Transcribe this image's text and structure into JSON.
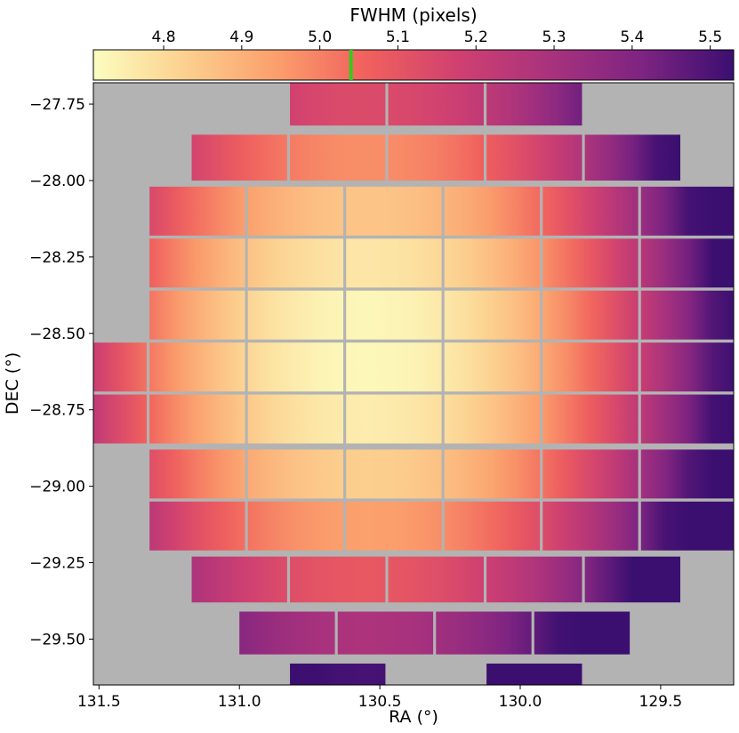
{
  "chart_data": {
    "type": "heatmap",
    "title": "",
    "xlabel": "RA (°)",
    "ylabel": "DEC (°)",
    "xlim": [
      131.52,
      129.24
    ],
    "ylim": [
      -29.65,
      -27.68
    ],
    "x_ticks": [
      131.5,
      131.0,
      130.5,
      130.0,
      129.5
    ],
    "x_tick_labels": [
      "131.5",
      "131.0",
      "130.5",
      "130.0",
      "129.5"
    ],
    "y_ticks": [
      -27.75,
      -28.0,
      -28.25,
      -28.5,
      -28.75,
      -29.0,
      -29.25,
      -29.5
    ],
    "y_tick_labels": [
      "−27.75",
      "−28.00",
      "−28.25",
      "−28.50",
      "−28.75",
      "−29.00",
      "−29.25",
      "−29.50"
    ],
    "background_color": "#b3b3b3",
    "colorbar": {
      "label": "FWHM (pixels)",
      "orientation": "horizontal",
      "position": "top",
      "range": [
        4.71,
        5.53
      ],
      "ticks": [
        4.8,
        4.9,
        5.0,
        5.1,
        5.2,
        5.3,
        5.4,
        5.5
      ],
      "tick_labels": [
        "4.8",
        "4.9",
        "5.0",
        "5.1",
        "5.2",
        "5.3",
        "5.4",
        "5.5"
      ],
      "marker_value": 5.04,
      "marker_color": "#33cc1a",
      "colormap": "magma_r",
      "colormap_stops": [
        "#fcfdbf",
        "#fcd08f",
        "#fb9f6c",
        "#f0605d",
        "#cf4071",
        "#a8327d",
        "#7e2482",
        "#3b0f70"
      ]
    },
    "fwhm_field": {
      "description_of_trend": "minimum at center, increasing radially",
      "center_ra": 130.55,
      "center_dec": -28.55,
      "min_fwhm": 4.72,
      "edge_fwhm": 5.3
    },
    "ccd_rows": [
      {
        "dec": [
          -27.68,
          -27.82
        ],
        "ra": [
          [
            130.82,
            130.48
          ],
          [
            130.47,
            130.13
          ],
          [
            130.12,
            129.78
          ]
        ]
      },
      {
        "dec": [
          -27.85,
          -28.0
        ],
        "ra": [
          [
            131.17,
            130.83
          ],
          [
            130.82,
            130.48
          ],
          [
            130.47,
            130.13
          ],
          [
            130.12,
            129.78
          ],
          [
            129.77,
            129.43
          ]
        ]
      },
      {
        "dec": [
          -28.02,
          -28.18
        ],
        "ra": [
          [
            131.32,
            130.98
          ],
          [
            130.97,
            130.63
          ],
          [
            130.62,
            130.28
          ],
          [
            130.27,
            129.93
          ],
          [
            129.92,
            129.58
          ],
          [
            129.57,
            129.23
          ]
        ]
      },
      {
        "dec": [
          -28.19,
          -28.35
        ],
        "ra": [
          [
            131.32,
            130.98
          ],
          [
            130.97,
            130.63
          ],
          [
            130.62,
            130.28
          ],
          [
            130.27,
            129.93
          ],
          [
            129.92,
            129.58
          ],
          [
            129.57,
            129.23
          ]
        ]
      },
      {
        "dec": [
          -28.36,
          -28.52
        ],
        "ra": [
          [
            131.32,
            130.98
          ],
          [
            130.97,
            130.63
          ],
          [
            130.62,
            130.28
          ],
          [
            130.27,
            129.93
          ],
          [
            129.92,
            129.58
          ],
          [
            129.57,
            129.23
          ]
        ]
      },
      {
        "dec": [
          -28.53,
          -28.69
        ],
        "ra": [
          [
            131.67,
            131.33
          ],
          [
            131.32,
            130.98
          ],
          [
            130.97,
            130.63
          ],
          [
            130.62,
            130.28
          ],
          [
            130.27,
            129.93
          ],
          [
            129.92,
            129.58
          ],
          [
            129.57,
            129.23
          ]
        ]
      },
      {
        "dec": [
          -28.7,
          -28.86
        ],
        "ra": [
          [
            131.67,
            131.33
          ],
          [
            131.32,
            130.98
          ],
          [
            130.97,
            130.63
          ],
          [
            130.62,
            130.28
          ],
          [
            130.27,
            129.93
          ],
          [
            129.92,
            129.58
          ],
          [
            129.57,
            129.23
          ]
        ]
      },
      {
        "dec": [
          -28.88,
          -29.04
        ],
        "ra": [
          [
            131.32,
            130.98
          ],
          [
            130.97,
            130.63
          ],
          [
            130.62,
            130.28
          ],
          [
            130.27,
            129.93
          ],
          [
            129.92,
            129.58
          ],
          [
            129.57,
            129.23
          ]
        ]
      },
      {
        "dec": [
          -29.05,
          -29.21
        ],
        "ra": [
          [
            131.32,
            130.98
          ],
          [
            130.97,
            130.63
          ],
          [
            130.62,
            130.28
          ],
          [
            130.27,
            129.93
          ],
          [
            129.92,
            129.58
          ],
          [
            129.57,
            129.23
          ]
        ]
      },
      {
        "dec": [
          -29.23,
          -29.38
        ],
        "ra": [
          [
            131.17,
            130.83
          ],
          [
            130.82,
            130.48
          ],
          [
            130.47,
            130.13
          ],
          [
            130.12,
            129.78
          ],
          [
            129.77,
            129.43
          ]
        ]
      },
      {
        "dec": [
          -29.41,
          -29.55
        ],
        "ra": [
          [
            131.0,
            130.66
          ],
          [
            130.65,
            130.31
          ],
          [
            130.3,
            129.96
          ],
          [
            129.95,
            129.61
          ]
        ]
      },
      {
        "dec": [
          -29.58,
          -29.72
        ],
        "ra": [
          [
            130.82,
            130.48
          ],
          [
            130.12,
            129.78
          ]
        ]
      }
    ]
  }
}
